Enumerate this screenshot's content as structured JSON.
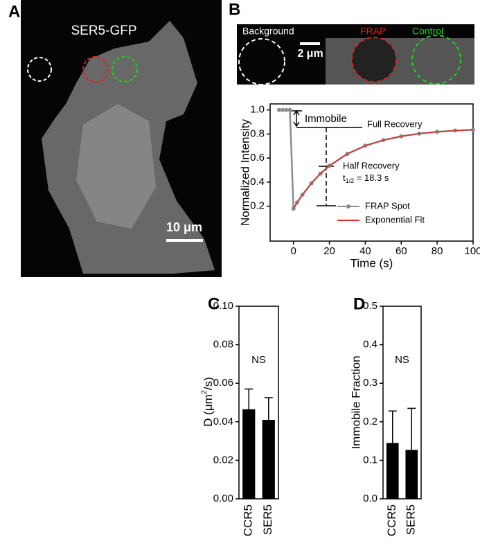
{
  "figure": {
    "panel_labels": [
      "A",
      "B",
      "C",
      "D"
    ],
    "image_a": {
      "label": "SER5-GFP",
      "scale": "10 μm"
    },
    "image_b": {
      "background": "Background",
      "frap": "FRAP",
      "control": "Control",
      "scale": "2 μm"
    },
    "annotations": {
      "immobile": "Immobile",
      "full": "Full Recovery",
      "half": "Half Recovery",
      "t": "t",
      "t_sub": "1/2",
      "t_value": " = 18.3 s"
    }
  },
  "chart_data": [
    {
      "type": "line",
      "xlabel": "Time (s)",
      "ylabel": "Normalized Intensity",
      "xlim": [
        -13,
        100
      ],
      "ylim": [
        -0.09,
        1.05
      ],
      "xticks": [
        0,
        20,
        40,
        60,
        80,
        100
      ],
      "yticks": [
        0.2,
        0.4,
        0.6,
        0.8,
        {
          "value": 1,
          "label": "1.0"
        }
      ],
      "legend": "lower right",
      "series": [
        {
          "name": "FRAP Spot",
          "color": "#8c8c8c",
          "markers": true,
          "x": [
            -8,
            -6,
            -4,
            -2,
            0,
            2,
            5,
            10,
            15,
            20,
            30,
            40,
            50,
            60,
            70,
            80,
            90,
            100
          ],
          "values": [
            1.0,
            1.0,
            1.0,
            1.0,
            0.18,
            0.23,
            0.295,
            0.391,
            0.471,
            0.536,
            0.635,
            0.703,
            0.749,
            0.781,
            0.803,
            0.818,
            0.828,
            0.835
          ]
        },
        {
          "name": "Exponential Fit",
          "color": "#e03030",
          "markers": false,
          "x": [
            0,
            2,
            5,
            10,
            15,
            20,
            30,
            40,
            50,
            60,
            70,
            80,
            90,
            100
          ],
          "values": [
            0.18,
            0.23,
            0.295,
            0.391,
            0.471,
            0.536,
            0.635,
            0.703,
            0.749,
            0.781,
            0.803,
            0.818,
            0.828,
            0.835
          ]
        }
      ]
    },
    {
      "type": "bar",
      "ylabel": "D (μm",
      "ylabel_sup": "2",
      "ylabel_end": "/s)",
      "annotation": "NS",
      "annotation_y": 0.072,
      "ylim": [
        0,
        0.1
      ],
      "yticks": [
        {
          "value": 0,
          "label": "0.00"
        },
        0.02,
        0.04,
        0.06,
        0.08,
        {
          "value": 0.1,
          "label": "0.10"
        }
      ],
      "categories": [
        "CCR5",
        "SER5"
      ],
      "values": [
        0.0465,
        0.041
      ],
      "errors": [
        0.0105,
        0.0115
      ],
      "color": "#000000"
    },
    {
      "type": "bar",
      "ylabel": "Immobile Fraction",
      "annotation": "NS",
      "annotation_y": 0.36,
      "ylim": [
        0,
        0.5
      ],
      "yticks": [
        {
          "value": 0,
          "label": "0.0"
        },
        0.1,
        0.2,
        0.3,
        0.4,
        0.5
      ],
      "categories": [
        "CCR5",
        "SER5"
      ],
      "values": [
        0.145,
        0.127
      ],
      "errors": [
        0.083,
        0.108
      ],
      "color": "#000000"
    }
  ]
}
